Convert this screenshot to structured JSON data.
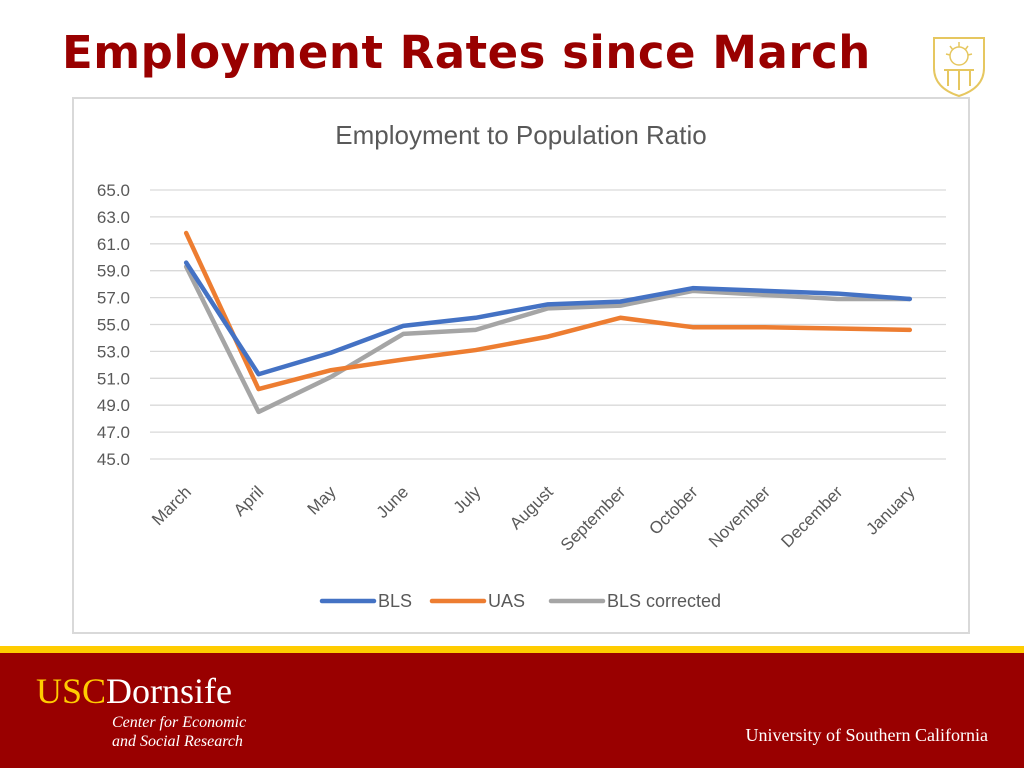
{
  "slide": {
    "title": "Employment Rates since March"
  },
  "footer": {
    "brand_usc": "USC",
    "brand_dornsife": "Dornsife",
    "subtitle_line1": "Center for Economic",
    "subtitle_line2": "and Social Research",
    "university": "University of Southern California"
  },
  "colors": {
    "title": "#990000",
    "footer_bg": "#990000",
    "gold": "#ffcc00",
    "bls": "#4472c4",
    "uas": "#ed7d31",
    "bls_corrected": "#a5a5a5"
  },
  "chart_data": {
    "type": "line",
    "title": "Employment to Population Ratio",
    "xlabel": "",
    "ylabel": "",
    "categories": [
      "March",
      "April",
      "May",
      "June",
      "July",
      "August",
      "September",
      "October",
      "November",
      "December",
      "January"
    ],
    "ylim": [
      45,
      65
    ],
    "yticks": [
      "65.0",
      "63.0",
      "61.0",
      "59.0",
      "57.0",
      "55.0",
      "53.0",
      "51.0",
      "49.0",
      "47.0",
      "45.0"
    ],
    "grid": true,
    "legend_position": "bottom",
    "series": [
      {
        "name": "BLS",
        "color": "#4472c4",
        "values": [
          59.6,
          51.3,
          52.9,
          54.9,
          55.5,
          56.5,
          56.7,
          57.7,
          57.5,
          57.3,
          56.9
        ]
      },
      {
        "name": "UAS",
        "color": "#ed7d31",
        "values": [
          61.8,
          50.2,
          51.6,
          52.4,
          53.1,
          54.1,
          55.5,
          54.8,
          54.8,
          54.7,
          54.6
        ]
      },
      {
        "name": "BLS corrected",
        "color": "#a5a5a5",
        "values": [
          59.3,
          48.5,
          51.1,
          54.3,
          54.6,
          56.2,
          56.4,
          57.5,
          57.2,
          56.9,
          56.9
        ]
      }
    ]
  }
}
